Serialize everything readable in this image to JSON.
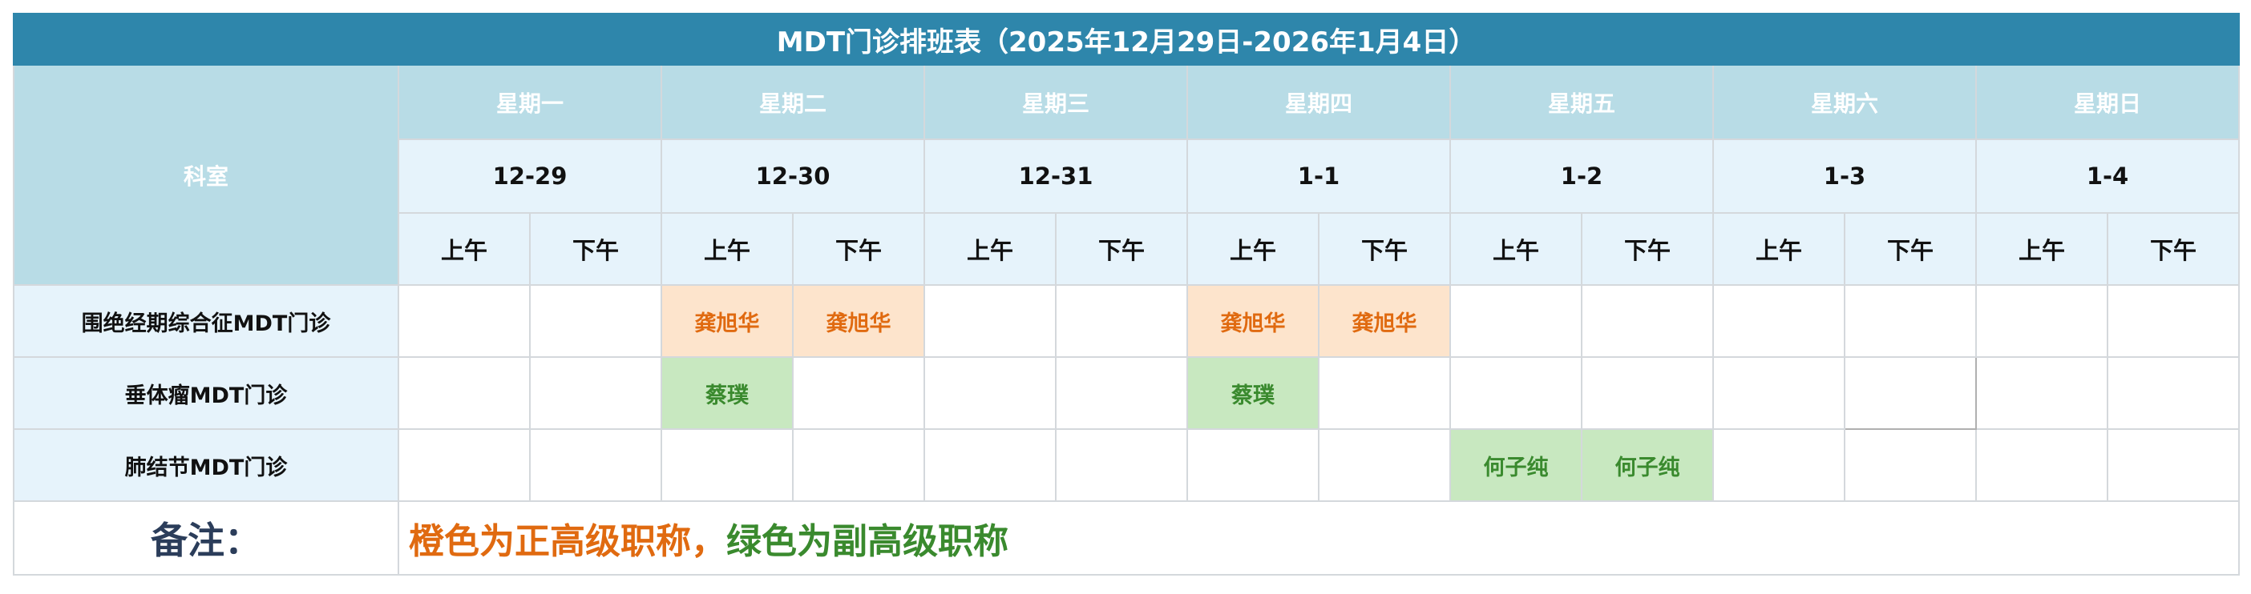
{
  "title": "MDT门诊排班表（2025年12月29日-2026年1月4日）",
  "department_header": "科室",
  "weekdays": [
    "星期一",
    "星期二",
    "星期三",
    "星期四",
    "星期五",
    "星期六",
    "星期日"
  ],
  "dates": [
    "12-29",
    "12-30",
    "12-31",
    "1-1",
    "1-2",
    "1-3",
    "1-4"
  ],
  "halves": [
    "上午",
    "下午"
  ],
  "colors": {
    "title_bg": "#2e86ab",
    "header_bg": "#b8dce6",
    "light_bg": "#e6f3fb",
    "orange_bg": "#fde4cc",
    "orange_text": "#e06a10",
    "green_bg": "#c8e8c0",
    "green_text": "#3a8a2e"
  },
  "rows": [
    {
      "department": "围绝经期综合征MDT门诊",
      "slots": [
        {
          "name": "",
          "level": ""
        },
        {
          "name": "",
          "level": ""
        },
        {
          "name": "龚旭华",
          "level": "orange"
        },
        {
          "name": "龚旭华",
          "level": "orange"
        },
        {
          "name": "",
          "level": ""
        },
        {
          "name": "",
          "level": ""
        },
        {
          "name": "龚旭华",
          "level": "orange"
        },
        {
          "name": "龚旭华",
          "level": "orange"
        },
        {
          "name": "",
          "level": ""
        },
        {
          "name": "",
          "level": ""
        },
        {
          "name": "",
          "level": ""
        },
        {
          "name": "",
          "level": ""
        },
        {
          "name": "",
          "level": ""
        },
        {
          "name": "",
          "level": ""
        }
      ]
    },
    {
      "department": "垂体瘤MDT门诊",
      "slots": [
        {
          "name": "",
          "level": ""
        },
        {
          "name": "",
          "level": ""
        },
        {
          "name": "蔡璞",
          "level": "green"
        },
        {
          "name": "",
          "level": ""
        },
        {
          "name": "",
          "level": ""
        },
        {
          "name": "",
          "level": ""
        },
        {
          "name": "蔡璞",
          "level": "green"
        },
        {
          "name": "",
          "level": ""
        },
        {
          "name": "",
          "level": ""
        },
        {
          "name": "",
          "level": ""
        },
        {
          "name": "",
          "level": ""
        },
        {
          "name": "",
          "level": ""
        },
        {
          "name": "",
          "level": ""
        },
        {
          "name": "",
          "level": ""
        }
      ]
    },
    {
      "department": "肺结节MDT门诊",
      "slots": [
        {
          "name": "",
          "level": ""
        },
        {
          "name": "",
          "level": ""
        },
        {
          "name": "",
          "level": ""
        },
        {
          "name": "",
          "level": ""
        },
        {
          "name": "",
          "level": ""
        },
        {
          "name": "",
          "level": ""
        },
        {
          "name": "",
          "level": ""
        },
        {
          "name": "",
          "level": ""
        },
        {
          "name": "何子纯",
          "level": "green"
        },
        {
          "name": "何子纯",
          "level": "green"
        },
        {
          "name": "",
          "level": ""
        },
        {
          "name": "",
          "level": ""
        },
        {
          "name": "",
          "level": ""
        },
        {
          "name": "",
          "level": ""
        }
      ]
    }
  ],
  "note": {
    "label": "备注：",
    "orange_text": "橙色为正高级职称，",
    "green_text": "绿色为副高级职称"
  }
}
